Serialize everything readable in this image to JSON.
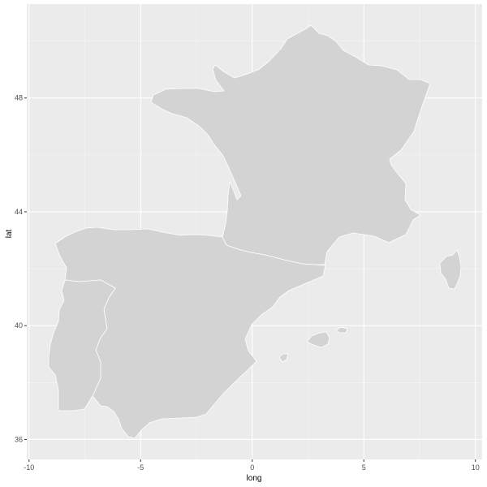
{
  "chart_data": {
    "type": "map",
    "regions": [
      "France",
      "Spain",
      "Portugal",
      "Corsica",
      "Balearic Islands"
    ],
    "xlabel": "long",
    "ylabel": "lat",
    "x_ticks": [
      -10,
      -5,
      0,
      5,
      10
    ],
    "y_ticks": [
      36,
      40,
      44,
      48
    ],
    "xlim": [
      -10.1,
      10.3
    ],
    "ylim": [
      35.3,
      51.3
    ],
    "grid": true,
    "colors": {
      "panel_background": "#ebebeb",
      "grid_major": "#ffffff",
      "grid_minor": "#f5f5f5",
      "land_fill": "#d3d3d3",
      "land_border": "#ffffff"
    }
  }
}
